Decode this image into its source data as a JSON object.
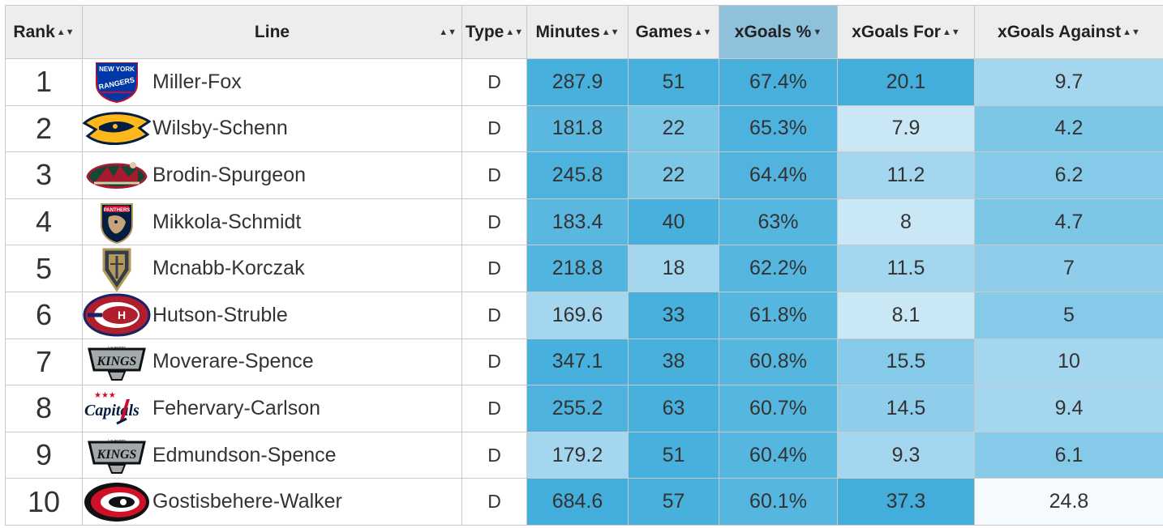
{
  "table": {
    "columns": [
      "Rank",
      "Line",
      "Type",
      "Minutes",
      "Games",
      "xGoals %",
      "xGoals For",
      "xGoals Against"
    ],
    "sorted_column": "xGoals %",
    "rows": [
      {
        "rank": "1",
        "line": "Miller-Fox",
        "team_logo": "rangers-logo",
        "type": "D",
        "minutes": "287.9",
        "games": "51",
        "xg_pct": "67.4%",
        "xg_for": "20.1",
        "xg_against": "9.7",
        "colors": {
          "minutes": "#48b0dc",
          "games": "#48b0dc",
          "xg_pct": "#48b0dc",
          "xg_for": "#43addb",
          "xg_against": "#a4d6ef"
        }
      },
      {
        "rank": "2",
        "line": "Wilsby-Schenn",
        "team_logo": "predators-logo",
        "type": "D",
        "minutes": "181.8",
        "games": "22",
        "xg_pct": "65.3%",
        "xg_for": "7.9",
        "xg_against": "4.2",
        "colors": {
          "minutes": "#5ab8e0",
          "games": "#7cc6e6",
          "xg_pct": "#4db2dd",
          "xg_for": "#c9e7f5",
          "xg_against": "#7cc6e6"
        }
      },
      {
        "rank": "3",
        "line": "Brodin-Spurgeon",
        "team_logo": "wild-logo",
        "type": "D",
        "minutes": "245.8",
        "games": "22",
        "xg_pct": "64.4%",
        "xg_for": "11.2",
        "xg_against": "6.2",
        "colors": {
          "minutes": "#4db3de",
          "games": "#7cc6e6",
          "xg_pct": "#52b4de",
          "xg_for": "#a4d6ef",
          "xg_against": "#86cae9"
        }
      },
      {
        "rank": "4",
        "line": "Mikkola-Schmidt",
        "team_logo": "panthers-logo",
        "type": "D",
        "minutes": "183.4",
        "games": "40",
        "xg_pct": "63%",
        "xg_for": "8",
        "xg_against": "4.7",
        "colors": {
          "minutes": "#5ab8e0",
          "games": "#48b0dc",
          "xg_pct": "#55b6df",
          "xg_for": "#c9e7f5",
          "xg_against": "#7cc6e6"
        }
      },
      {
        "rank": "5",
        "line": "Mcnabb-Korczak",
        "team_logo": "golden-knights-logo",
        "type": "D",
        "minutes": "218.8",
        "games": "18",
        "xg_pct": "62.2%",
        "xg_for": "11.5",
        "xg_against": "7",
        "colors": {
          "minutes": "#52b5df",
          "games": "#a4d6ef",
          "xg_pct": "#55b6df",
          "xg_for": "#a4d6ef",
          "xg_against": "#8fcdea"
        }
      },
      {
        "rank": "6",
        "line": "Hutson-Struble",
        "team_logo": "canadiens-logo",
        "type": "D",
        "minutes": "169.6",
        "games": "33",
        "xg_pct": "61.8%",
        "xg_for": "8.1",
        "xg_against": "5",
        "colors": {
          "minutes": "#a4d6ef",
          "games": "#48b0dc",
          "xg_pct": "#55b6df",
          "xg_for": "#c9e7f5",
          "xg_against": "#86cae9"
        }
      },
      {
        "rank": "7",
        "line": "Moverare-Spence",
        "team_logo": "kings-logo",
        "type": "D",
        "minutes": "347.1",
        "games": "38",
        "xg_pct": "60.8%",
        "xg_for": "15.5",
        "xg_against": "10",
        "colors": {
          "minutes": "#48b0dc",
          "games": "#48b0dc",
          "xg_pct": "#55b6df",
          "xg_for": "#86cae9",
          "xg_against": "#a4d6ef"
        }
      },
      {
        "rank": "8",
        "line": "Fehervary-Carlson",
        "team_logo": "capitals-logo",
        "type": "D",
        "minutes": "255.2",
        "games": "63",
        "xg_pct": "60.7%",
        "xg_for": "14.5",
        "xg_against": "9.4",
        "colors": {
          "minutes": "#4db3de",
          "games": "#48b0dc",
          "xg_pct": "#55b6df",
          "xg_for": "#8fcdea",
          "xg_against": "#a4d6ef"
        }
      },
      {
        "rank": "9",
        "line": "Edmundson-Spence",
        "team_logo": "kings-logo",
        "type": "D",
        "minutes": "179.2",
        "games": "51",
        "xg_pct": "60.4%",
        "xg_for": "9.3",
        "xg_against": "6.1",
        "colors": {
          "minutes": "#a4d6ef",
          "games": "#48b0dc",
          "xg_pct": "#55b6df",
          "xg_for": "#a4d6ef",
          "xg_against": "#86cae9"
        }
      },
      {
        "rank": "10",
        "line": "Gostisbehere-Walker",
        "team_logo": "hurricanes-logo",
        "type": "D",
        "minutes": "684.6",
        "games": "57",
        "xg_pct": "60.1%",
        "xg_for": "37.3",
        "xg_against": "24.8",
        "colors": {
          "minutes": "#43addb",
          "games": "#48b0dc",
          "xg_pct": "#55b6df",
          "xg_for": "#43addb",
          "xg_against": "#f4fafd"
        }
      }
    ]
  }
}
